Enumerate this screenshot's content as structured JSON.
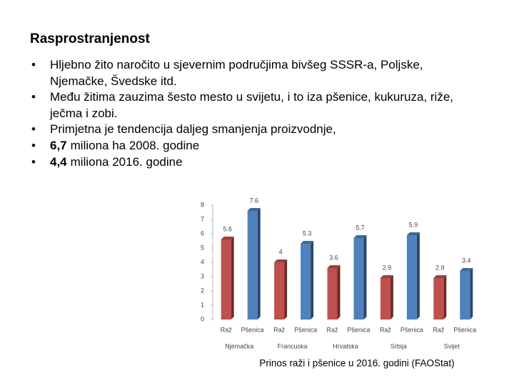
{
  "slide": {
    "title": "Rasprostranjenost",
    "bullets": [
      {
        "text": "Hljebno žito naročito u sjevernim područjima bivšeg SSSR-a, Poljske, Njemačke, Švedske itd."
      },
      {
        "text": "Među žitima zauzima šesto mesto u svijetu, i to iza pšenice, kukuruza, riže, ječma i zobi."
      },
      {
        "text": "Primjetna je tendencija daljeg smanjenja proizvodnje,"
      },
      {
        "bold": "6,7",
        "text": "miliona ha 2008. godine"
      },
      {
        "bold": "4,4",
        "text": "miliona 2016. godine"
      }
    ]
  },
  "chart_data": {
    "type": "bar",
    "caption": "Prinos raži i pšenice u 2016. godini (FAOStat)",
    "categories": [
      "Njemačka",
      "Francuska",
      "Hrvatska",
      "Srbija",
      "Svijet"
    ],
    "series": [
      {
        "name": "Raž",
        "color": "#c0504d",
        "values": [
          5.6,
          4,
          3.6,
          2.9,
          2.9
        ]
      },
      {
        "name": "Pšenica",
        "color": "#4f81bd",
        "values": [
          7.6,
          5.3,
          5.7,
          5.9,
          3.4
        ]
      }
    ],
    "ylim": [
      0,
      8
    ],
    "yticks": [
      0,
      1,
      2,
      3,
      4,
      5,
      6,
      7,
      8
    ],
    "grid": false
  }
}
